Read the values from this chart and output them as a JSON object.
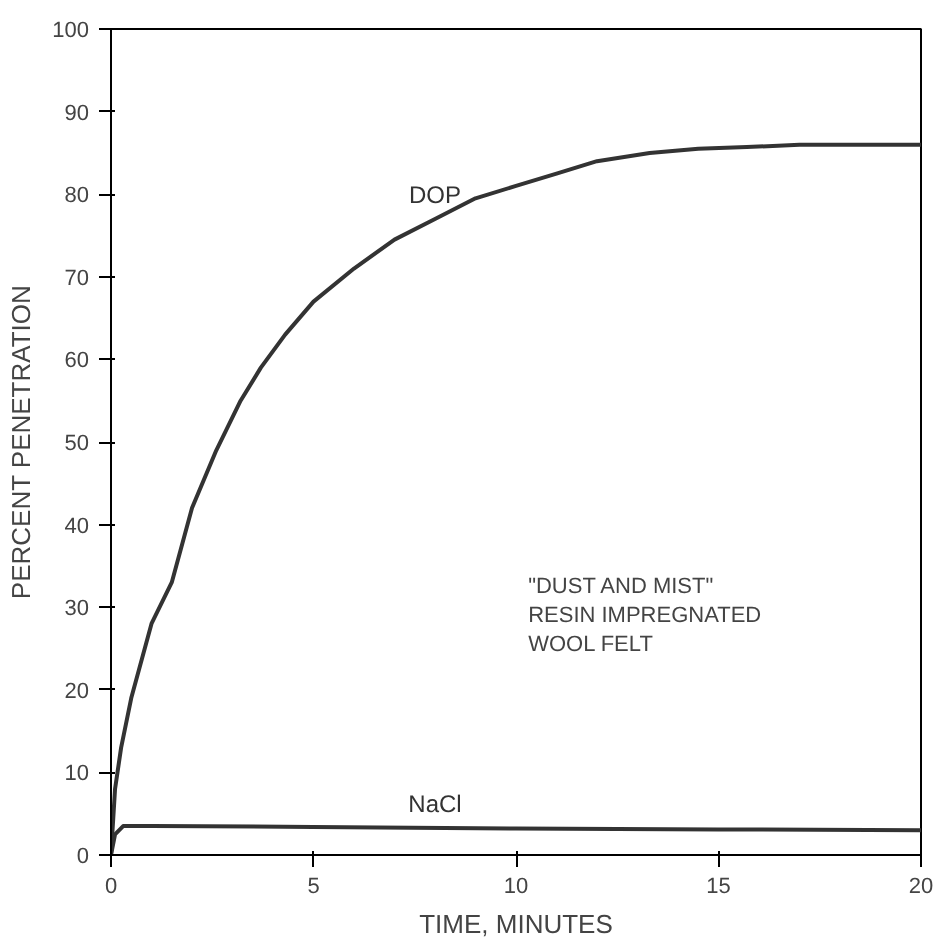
{
  "chart_data": {
    "type": "line",
    "xlabel": "TIME, MINUTES",
    "ylabel": "PERCENT PENETRATION",
    "xlim": [
      0,
      20
    ],
    "ylim": [
      0,
      100
    ],
    "xticks": [
      0,
      5,
      10,
      15,
      20
    ],
    "yticks": [
      0,
      10,
      20,
      30,
      40,
      50,
      60,
      70,
      80,
      90,
      100
    ],
    "grid": false,
    "marker": "none",
    "line_style": "solid",
    "series": [
      {
        "name": "DOP",
        "color": "#333333",
        "x": [
          0,
          0.1,
          0.25,
          0.5,
          1,
          1.5,
          2,
          2.6,
          3.2,
          3.7,
          4.3,
          5,
          6,
          7,
          8,
          9,
          10,
          11,
          12,
          13.3,
          14.5,
          15.7,
          17,
          18.5,
          20
        ],
        "values": [
          0,
          8,
          13,
          19,
          28,
          33,
          42,
          49,
          55,
          59,
          63,
          67,
          71,
          74.5,
          77,
          79.5,
          81,
          82.5,
          84,
          85,
          85.5,
          85.7,
          86,
          86,
          86
        ]
      },
      {
        "name": "NaCl",
        "color": "#333333",
        "x": [
          0,
          0.1,
          0.3,
          1,
          5,
          10,
          15,
          20
        ],
        "values": [
          0,
          2.5,
          3.5,
          3.5,
          3.4,
          3.2,
          3.1,
          3
        ]
      }
    ],
    "annotations": [
      "\"DUST AND MIST\"\nRESIN IMPREGNATED\nWOOL FELT"
    ]
  }
}
